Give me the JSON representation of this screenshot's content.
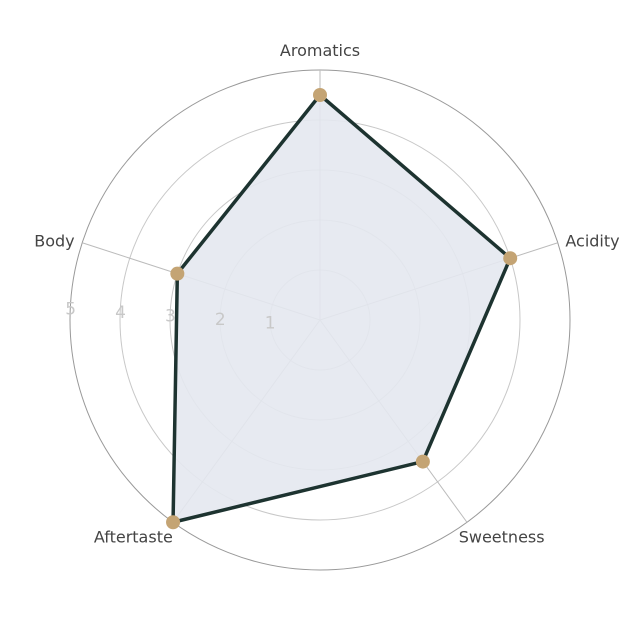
{
  "chart_data": {
    "type": "radar",
    "title": "",
    "categories": [
      "Aromatics",
      "Acidity",
      "Sweetness",
      "Aftertaste",
      "Body"
    ],
    "values": [
      4.5,
      4,
      3.5,
      5,
      3
    ],
    "radial_range": [
      0,
      5
    ],
    "radial_ticks": [
      "1",
      "2",
      "3",
      "4",
      "5"
    ],
    "grid": true,
    "colors": {
      "fill": "#e4e8ef",
      "line": "#1d3330",
      "marker": "#c4a474",
      "grid": "#9a9a9a"
    }
  }
}
